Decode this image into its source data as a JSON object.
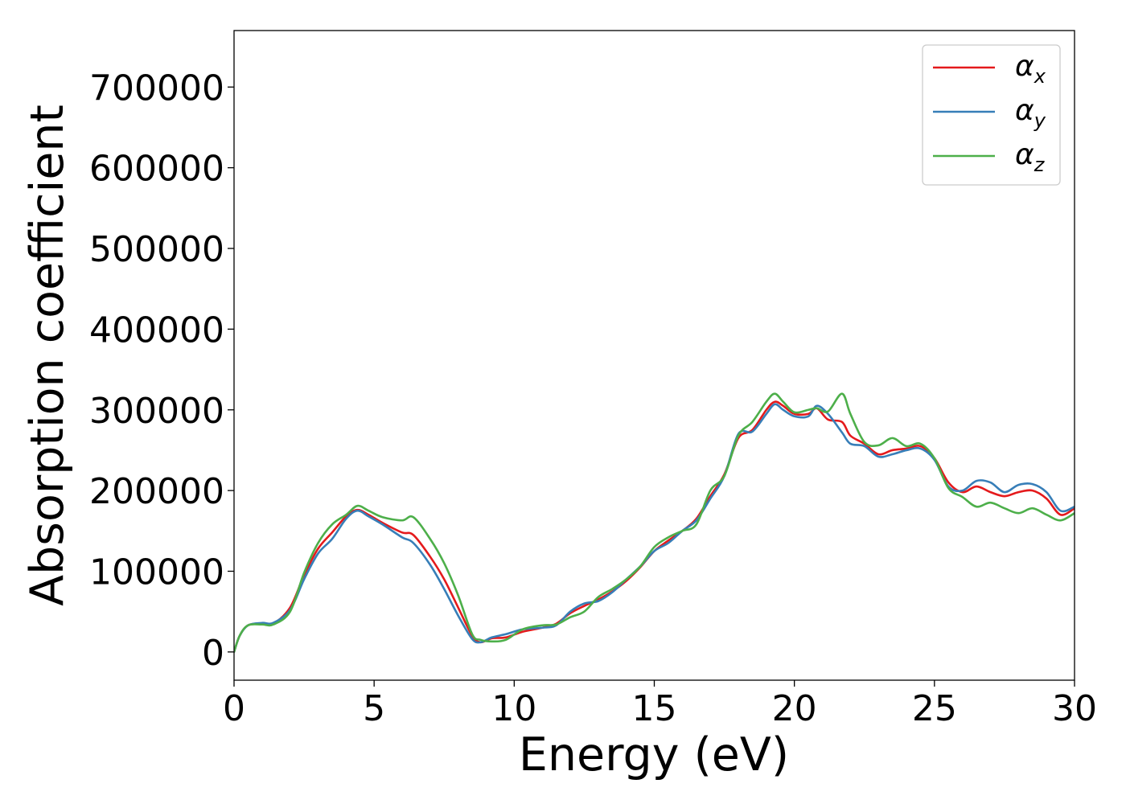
{
  "chart_data": {
    "type": "line",
    "title": "",
    "xlabel": "Energy (eV)",
    "ylabel": "Absorption coefficient",
    "xlim": [
      0,
      30
    ],
    "ylim": [
      -35000,
      770000
    ],
    "xticks": [
      0,
      5,
      10,
      15,
      20,
      25,
      30
    ],
    "yticks": [
      0,
      100000,
      200000,
      300000,
      400000,
      500000,
      600000,
      700000
    ],
    "xtick_labels": [
      "0",
      "5",
      "10",
      "15",
      "20",
      "25",
      "30"
    ],
    "ytick_labels": [
      "0",
      "100000",
      "200000",
      "300000",
      "400000",
      "500000",
      "600000",
      "700000"
    ],
    "grid": false,
    "legend_position": "top-right",
    "series": [
      {
        "name": "αx",
        "symbol": "α",
        "subscript": "x",
        "color": "#e41a1c",
        "x": [
          0,
          0.2,
          0.5,
          1,
          1.4,
          2,
          2.5,
          3,
          3.5,
          4,
          4.4,
          4.8,
          5.3,
          6,
          6.4,
          7,
          7.5,
          8,
          8.5,
          8.8,
          9.2,
          9.7,
          10.3,
          11,
          11.5,
          12,
          12.5,
          13,
          13.5,
          14,
          14.5,
          15,
          15.5,
          16,
          16.5,
          17,
          17.5,
          18,
          18.5,
          19,
          19.3,
          19.6,
          20,
          20.5,
          20.8,
          21.2,
          21.7,
          22,
          22.5,
          23,
          23.5,
          24,
          24.5,
          25,
          25.5,
          26,
          26.5,
          27,
          27.5,
          28,
          28.5,
          29,
          29.5,
          30
        ],
        "y": [
          0,
          20000,
          33000,
          35000,
          35000,
          55000,
          95000,
          128000,
          148000,
          168000,
          176000,
          170000,
          160000,
          148000,
          145000,
          118000,
          90000,
          55000,
          20000,
          12000,
          17000,
          18000,
          25000,
          30000,
          35000,
          48000,
          57000,
          65000,
          75000,
          88000,
          105000,
          125000,
          138000,
          150000,
          165000,
          193000,
          220000,
          265000,
          275000,
          300000,
          310000,
          305000,
          295000,
          295000,
          302000,
          288000,
          285000,
          268000,
          258000,
          245000,
          250000,
          252000,
          255000,
          240000,
          210000,
          198000,
          205000,
          198000,
          193000,
          198000,
          200000,
          190000,
          170000,
          178000
        ]
      },
      {
        "name": "αy",
        "symbol": "α",
        "subscript": "y",
        "color": "#377eb8",
        "x": [
          0,
          0.2,
          0.5,
          1,
          1.4,
          2,
          2.5,
          3,
          3.5,
          4,
          4.4,
          4.8,
          5.3,
          6,
          6.4,
          7,
          7.5,
          8,
          8.5,
          8.8,
          9.2,
          9.7,
          10.3,
          11,
          11.5,
          12,
          12.5,
          13,
          13.5,
          14,
          14.5,
          15,
          15.5,
          16,
          16.5,
          17,
          17.5,
          18,
          18.5,
          19,
          19.3,
          19.6,
          20,
          20.5,
          20.8,
          21.2,
          21.7,
          22,
          22.5,
          23,
          23.5,
          24,
          24.5,
          25,
          25.5,
          26,
          26.5,
          27,
          27.5,
          28,
          28.5,
          29,
          29.5,
          30
        ],
        "y": [
          0,
          20000,
          33000,
          36000,
          36000,
          52000,
          90000,
          122000,
          140000,
          165000,
          175000,
          168000,
          158000,
          142000,
          135000,
          108000,
          78000,
          45000,
          16000,
          12000,
          18000,
          22000,
          28000,
          30000,
          33000,
          50000,
          60000,
          63000,
          74000,
          90000,
          106000,
          125000,
          135000,
          150000,
          163000,
          190000,
          218000,
          270000,
          273000,
          295000,
          307000,
          300000,
          292000,
          292000,
          305000,
          295000,
          272000,
          258000,
          255000,
          242000,
          245000,
          250000,
          252000,
          238000,
          205000,
          200000,
          212000,
          210000,
          198000,
          207000,
          208000,
          198000,
          175000,
          180000
        ]
      },
      {
        "name": "αz",
        "symbol": "α",
        "subscript": "z",
        "color": "#4daf4a",
        "x": [
          0,
          0.2,
          0.5,
          1,
          1.4,
          2,
          2.5,
          3,
          3.5,
          4,
          4.4,
          4.8,
          5.3,
          6,
          6.4,
          7,
          7.5,
          8,
          8.5,
          8.8,
          9.2,
          9.7,
          10.3,
          11,
          11.5,
          12,
          12.5,
          13,
          13.5,
          14,
          14.5,
          15,
          15.5,
          16,
          16.5,
          17,
          17.5,
          18,
          18.5,
          19,
          19.3,
          19.6,
          20,
          20.5,
          20.8,
          21.2,
          21.7,
          22,
          22.5,
          23,
          23.5,
          24,
          24.5,
          25,
          25.5,
          26,
          26.5,
          27,
          27.5,
          28,
          28.5,
          29,
          29.5,
          30
        ],
        "y": [
          0,
          20000,
          33000,
          34000,
          34000,
          50000,
          98000,
          135000,
          158000,
          170000,
          181000,
          175000,
          167000,
          163000,
          167000,
          140000,
          110000,
          70000,
          22000,
          15000,
          13000,
          15000,
          28000,
          33000,
          34000,
          43000,
          50000,
          68000,
          78000,
          90000,
          106000,
          130000,
          142000,
          150000,
          158000,
          200000,
          218000,
          268000,
          285000,
          310000,
          320000,
          310000,
          297000,
          300000,
          302000,
          298000,
          320000,
          295000,
          260000,
          256000,
          265000,
          255000,
          258000,
          240000,
          203000,
          192000,
          180000,
          185000,
          178000,
          172000,
          178000,
          170000,
          163000,
          172000
        ]
      }
    ]
  }
}
